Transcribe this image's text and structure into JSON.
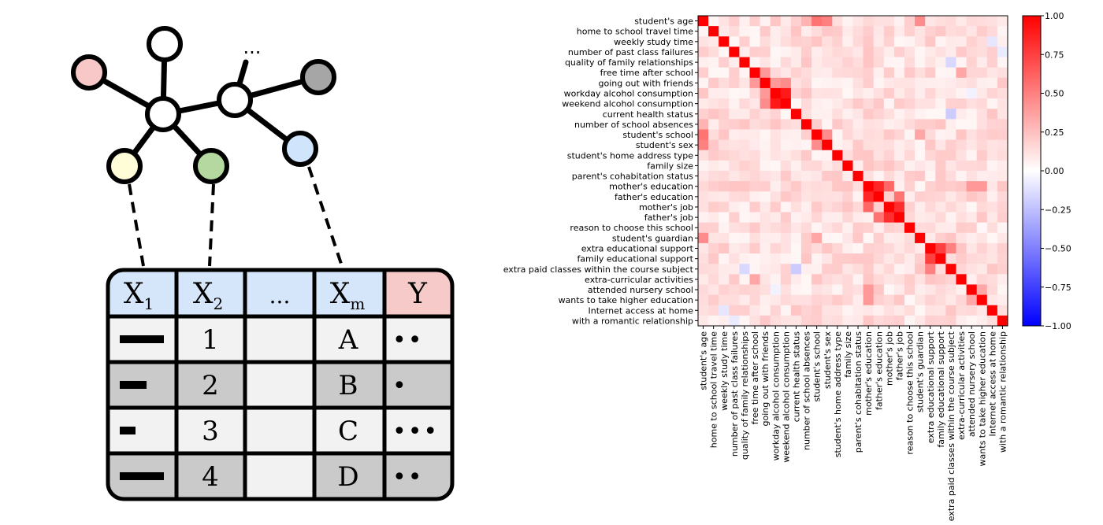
{
  "graph": {
    "ellipsis": "...",
    "node_colors": {
      "pink": "#f8c8c8",
      "yellow": "#fffdd8",
      "green": "#b4d8a0",
      "blue": "#d0e4fb",
      "gray": "#a6a6a6",
      "white": "#ffffff"
    }
  },
  "table": {
    "header_bg_features": "#d6e6fa",
    "header_bg_target": "#f5cac8",
    "row_bg_light": "#f2f2f2",
    "row_bg_dark": "#cacaca",
    "headers": [
      {
        "main": "X",
        "sub": "1"
      },
      {
        "main": "X",
        "sub": "2"
      },
      {
        "main": "...",
        "sub": ""
      },
      {
        "main": "X",
        "sub": "m"
      },
      {
        "main": "Y",
        "sub": ""
      }
    ],
    "rows": [
      {
        "bar": 1.0,
        "num": "1",
        "letter": "A",
        "dots": "••"
      },
      {
        "bar": 0.6,
        "num": "2",
        "letter": "B",
        "dots": "•"
      },
      {
        "bar": 0.35,
        "num": "3",
        "letter": "C",
        "dots": "•••"
      },
      {
        "bar": 1.0,
        "num": "4",
        "letter": "D",
        "dots": "••"
      }
    ]
  },
  "chart_data": {
    "type": "heatmap",
    "labels": [
      "student's age",
      "home to school travel time",
      "weekly study time",
      "number of past class failures",
      "quality of family relationships",
      "free time after school",
      "going out with friends",
      "workday alcohol consumption",
      "weekend alcohol consumption",
      "current health status",
      "number of school absences",
      "student's school",
      "student's sex",
      "student's home address type",
      "family size",
      "parent's cohabitation status",
      "mother's education",
      "father's education",
      "mother's job",
      "father's job",
      "reason to choose this school",
      "student's guardian",
      "extra educational support",
      "family educational support",
      "extra paid classes within the course subject",
      "extra-curricular activities",
      "attended nursery school",
      "wants to take higher education",
      "Internet access at home",
      "with a romantic relationship"
    ],
    "colorbar": {
      "min": -1.0,
      "max": 1.0,
      "ticks": [
        "1.00",
        "0.75",
        "0.50",
        "0.25",
        "0.00",
        "−0.25",
        "−0.50",
        "−0.75",
        "−1.00"
      ],
      "colormap": "bwr"
    },
    "diagonal": 1.0,
    "strong_pairs": [
      {
        "a": "workday alcohol consumption",
        "b": "weekend alcohol consumption",
        "value": 0.9
      },
      {
        "a": "mother's education",
        "b": "father's education",
        "value": 0.85
      },
      {
        "a": "mother's job",
        "b": "father's job",
        "value": 0.82
      },
      {
        "a": "mother's education",
        "b": "mother's job",
        "value": 0.6
      },
      {
        "a": "father's education",
        "b": "father's job",
        "value": 0.55
      },
      {
        "a": "extra educational support",
        "b": "family educational support",
        "value": 0.75
      },
      {
        "a": "student's age",
        "b": "student's sex",
        "value": 0.5
      },
      {
        "a": "student's age",
        "b": "student's school",
        "value": 0.55
      },
      {
        "a": "extra paid classes within the course subject",
        "b": "extra educational support",
        "value": 0.5
      },
      {
        "a": "student's school",
        "b": "student's sex",
        "value": 0.45
      },
      {
        "a": "free time after school",
        "b": "going out with friends",
        "value": 0.4
      },
      {
        "a": "going out with friends",
        "b": "workday alcohol consumption",
        "value": 0.4
      },
      {
        "a": "going out with friends",
        "b": "weekend alcohol consumption",
        "value": 0.45
      },
      {
        "a": "student's age",
        "b": "student's guardian",
        "value": 0.45
      },
      {
        "a": "student's guardian",
        "b": "student's school",
        "value": 0.35
      },
      {
        "a": "mother's education",
        "b": "wants to take higher education",
        "value": 0.4
      },
      {
        "a": "attended nursery school",
        "b": "wants to take higher education",
        "value": 0.35
      },
      {
        "a": "mother's education",
        "b": "attended nursery school",
        "value": 0.4
      },
      {
        "a": "student's age",
        "b": "number of school absences",
        "value": 0.3
      },
      {
        "a": "extra-curricular activities",
        "b": "free time after school",
        "value": 0.35
      },
      {
        "a": "quality of family relationships",
        "b": "extra paid classes within the course subject",
        "value": -0.15
      },
      {
        "a": "current health status",
        "b": "extra paid classes within the course subject",
        "value": -0.2
      },
      {
        "a": "Internet access at home",
        "b": "weekly study time",
        "value": -0.1
      },
      {
        "a": "number of past class failures",
        "b": "with a romantic relationship",
        "value": -0.08
      },
      {
        "a": "workday alcohol consumption",
        "b": "attended nursery school",
        "value": -0.05
      }
    ]
  }
}
